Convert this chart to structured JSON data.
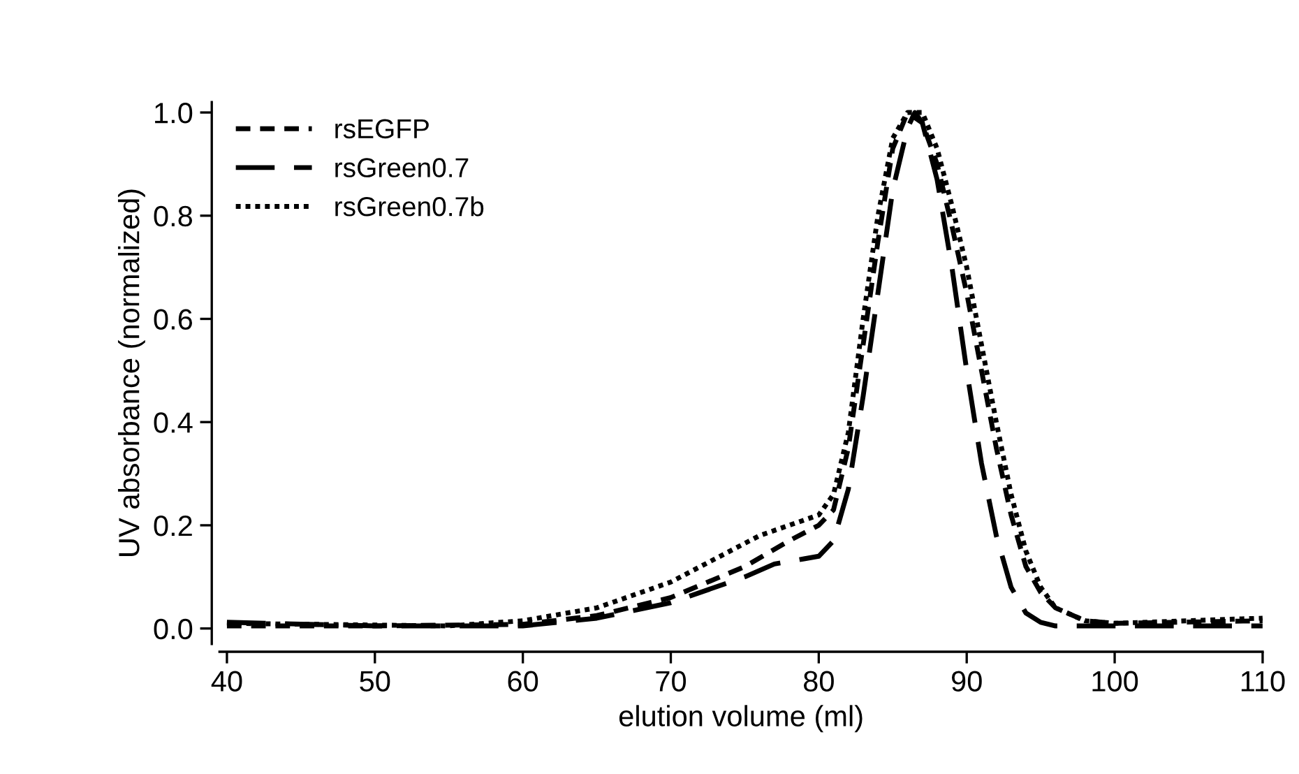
{
  "chart_data": {
    "type": "line",
    "xlabel": "elution volume (ml)",
    "ylabel": "UV absorbance (normalized)",
    "xlim": [
      39.5,
      110
    ],
    "ylim": [
      -0.03,
      1.02
    ],
    "xticks": [
      40,
      50,
      60,
      70,
      80,
      90,
      100,
      110
    ],
    "yticks": [
      {
        "value": 0,
        "label": "0.0"
      },
      0.2,
      0.4,
      0.6,
      0.8,
      {
        "value": 1,
        "label": "1.0"
      }
    ],
    "grid": false,
    "legend": "top left",
    "series": [
      {
        "name": "rsEGFP",
        "color": "#000000",
        "line_style": "dashed",
        "x": [
          40,
          50,
          60,
          65,
          70,
          75,
          78,
          80,
          81,
          82,
          83,
          84,
          85,
          86,
          87,
          88,
          89,
          90,
          91,
          92,
          93,
          94,
          95,
          96,
          98,
          100,
          110
        ],
        "values": [
          0.005,
          0.005,
          0.008,
          0.025,
          0.06,
          0.12,
          0.17,
          0.2,
          0.23,
          0.35,
          0.55,
          0.75,
          0.93,
          1.0,
          0.98,
          0.9,
          0.78,
          0.65,
          0.5,
          0.35,
          0.22,
          0.12,
          0.07,
          0.04,
          0.015,
          0.01,
          0.015
        ]
      },
      {
        "name": "rsGreen0.7",
        "color": "#000000",
        "line_style": "longdash",
        "x": [
          40,
          50,
          60,
          65,
          70,
          75,
          77,
          78,
          79,
          80,
          81,
          82,
          83,
          84,
          85,
          86,
          86.5,
          87,
          88,
          89,
          90,
          91,
          92,
          93,
          94,
          95,
          96,
          110
        ],
        "values": [
          0.012,
          0.005,
          0.005,
          0.02,
          0.05,
          0.1,
          0.125,
          0.13,
          0.135,
          0.14,
          0.17,
          0.27,
          0.45,
          0.65,
          0.85,
          0.97,
          1.0,
          0.98,
          0.87,
          0.7,
          0.5,
          0.32,
          0.18,
          0.08,
          0.03,
          0.012,
          0.005,
          0.005
        ]
      },
      {
        "name": "rsGreen0.7b",
        "color": "#000000",
        "line_style": "dotted",
        "x": [
          40,
          55,
          60,
          65,
          70,
          74,
          76,
          78,
          80,
          81,
          82,
          83,
          84,
          85,
          86,
          87,
          88,
          89,
          90,
          91,
          92,
          93,
          94,
          95,
          96,
          98,
          100,
          110
        ],
        "values": [
          0.01,
          0.005,
          0.015,
          0.04,
          0.09,
          0.15,
          0.18,
          0.2,
          0.22,
          0.26,
          0.38,
          0.6,
          0.8,
          0.95,
          1.0,
          1.0,
          0.93,
          0.82,
          0.7,
          0.55,
          0.4,
          0.26,
          0.15,
          0.08,
          0.04,
          0.015,
          0.01,
          0.02
        ]
      }
    ]
  }
}
